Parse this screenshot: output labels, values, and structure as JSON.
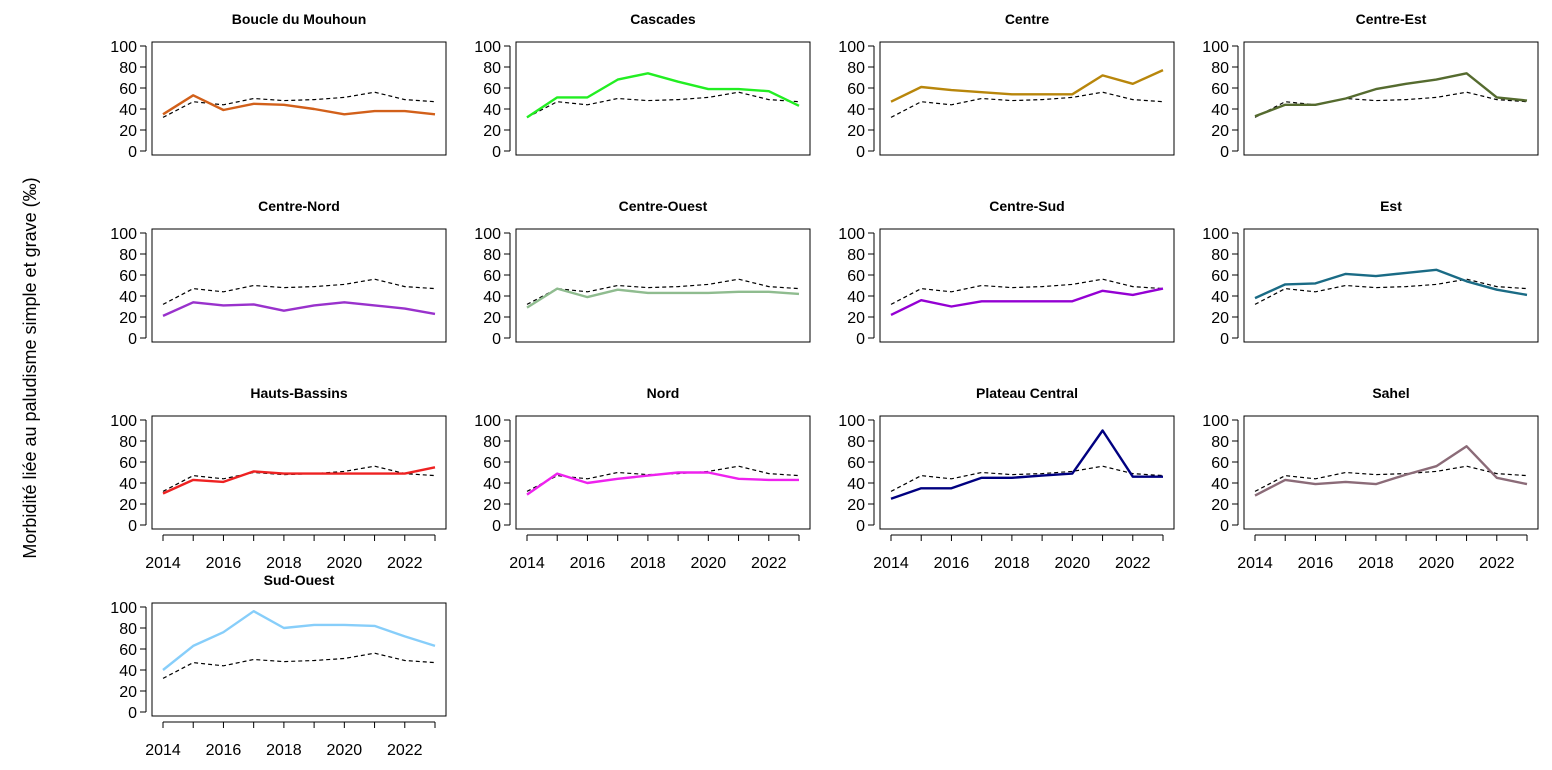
{
  "chart_data": {
    "type": "line",
    "ylabel": "Morbidité liée au paludisme simple et grave (‰)",
    "x": [
      2014,
      2015,
      2016,
      2017,
      2018,
      2019,
      2020,
      2021,
      2022,
      2023
    ],
    "xticks": [
      2014,
      2016,
      2018,
      2020,
      2022
    ],
    "yticks": [
      0,
      20,
      40,
      60,
      80,
      100
    ],
    "ylim": [
      0,
      100
    ],
    "grid": false,
    "reference": {
      "style": "dashed",
      "color": "#000000",
      "values": [
        32,
        47,
        44,
        50,
        48,
        49,
        51,
        56,
        49,
        47
      ]
    },
    "panels": [
      {
        "name": "Boucle du Mouhoun",
        "color": "#D2601A",
        "values": [
          35,
          53,
          39,
          45,
          44,
          40,
          35,
          38,
          38,
          35
        ]
      },
      {
        "name": "Cascades",
        "color": "#22EE22",
        "values": [
          32,
          51,
          51,
          68,
          74,
          66,
          59,
          59,
          57,
          43
        ]
      },
      {
        "name": "Centre",
        "color": "#B8860B",
        "values": [
          47,
          61,
          58,
          56,
          54,
          54,
          54,
          72,
          64,
          77
        ]
      },
      {
        "name": "Centre-Est",
        "color": "#556B2F",
        "values": [
          33,
          44,
          44,
          50,
          59,
          64,
          68,
          74,
          51,
          48
        ]
      },
      {
        "name": "Centre-Nord",
        "color": "#9932CC",
        "values": [
          21,
          34,
          31,
          32,
          26,
          31,
          34,
          31,
          28,
          23
        ]
      },
      {
        "name": "Centre-Ouest",
        "color": "#8FBC8F",
        "values": [
          29,
          47,
          39,
          46,
          43,
          43,
          43,
          44,
          44,
          42
        ]
      },
      {
        "name": "Centre-Sud",
        "color": "#9400D3",
        "values": [
          22,
          36,
          30,
          35,
          35,
          35,
          35,
          45,
          41,
          47
        ]
      },
      {
        "name": "Est",
        "color": "#1A6B85",
        "values": [
          38,
          51,
          52,
          61,
          59,
          62,
          65,
          54,
          46,
          41
        ]
      },
      {
        "name": "Hauts-Bassins",
        "color": "#EE2222",
        "values": [
          30,
          43,
          41,
          51,
          49,
          49,
          49,
          49,
          49,
          55
        ]
      },
      {
        "name": "Nord",
        "color": "#EE22EE",
        "values": [
          29,
          49,
          40,
          44,
          47,
          50,
          50,
          44,
          43,
          43
        ]
      },
      {
        "name": "Plateau Central",
        "color": "#000080",
        "values": [
          25,
          35,
          35,
          45,
          45,
          47,
          49,
          90,
          46,
          46
        ]
      },
      {
        "name": "Sahel",
        "color": "#8B6B78",
        "values": [
          28,
          43,
          39,
          41,
          39,
          48,
          56,
          75,
          45,
          39
        ]
      },
      {
        "name": "Sud-Ouest",
        "color": "#87CEFA",
        "values": [
          40,
          63,
          76,
          96,
          80,
          83,
          83,
          82,
          72,
          63
        ]
      }
    ],
    "x_axis_shown_on": [
      "Nord",
      "Plateau Central",
      "Sahel",
      "Sud-Ouest",
      "Hauts-Bassins"
    ]
  }
}
